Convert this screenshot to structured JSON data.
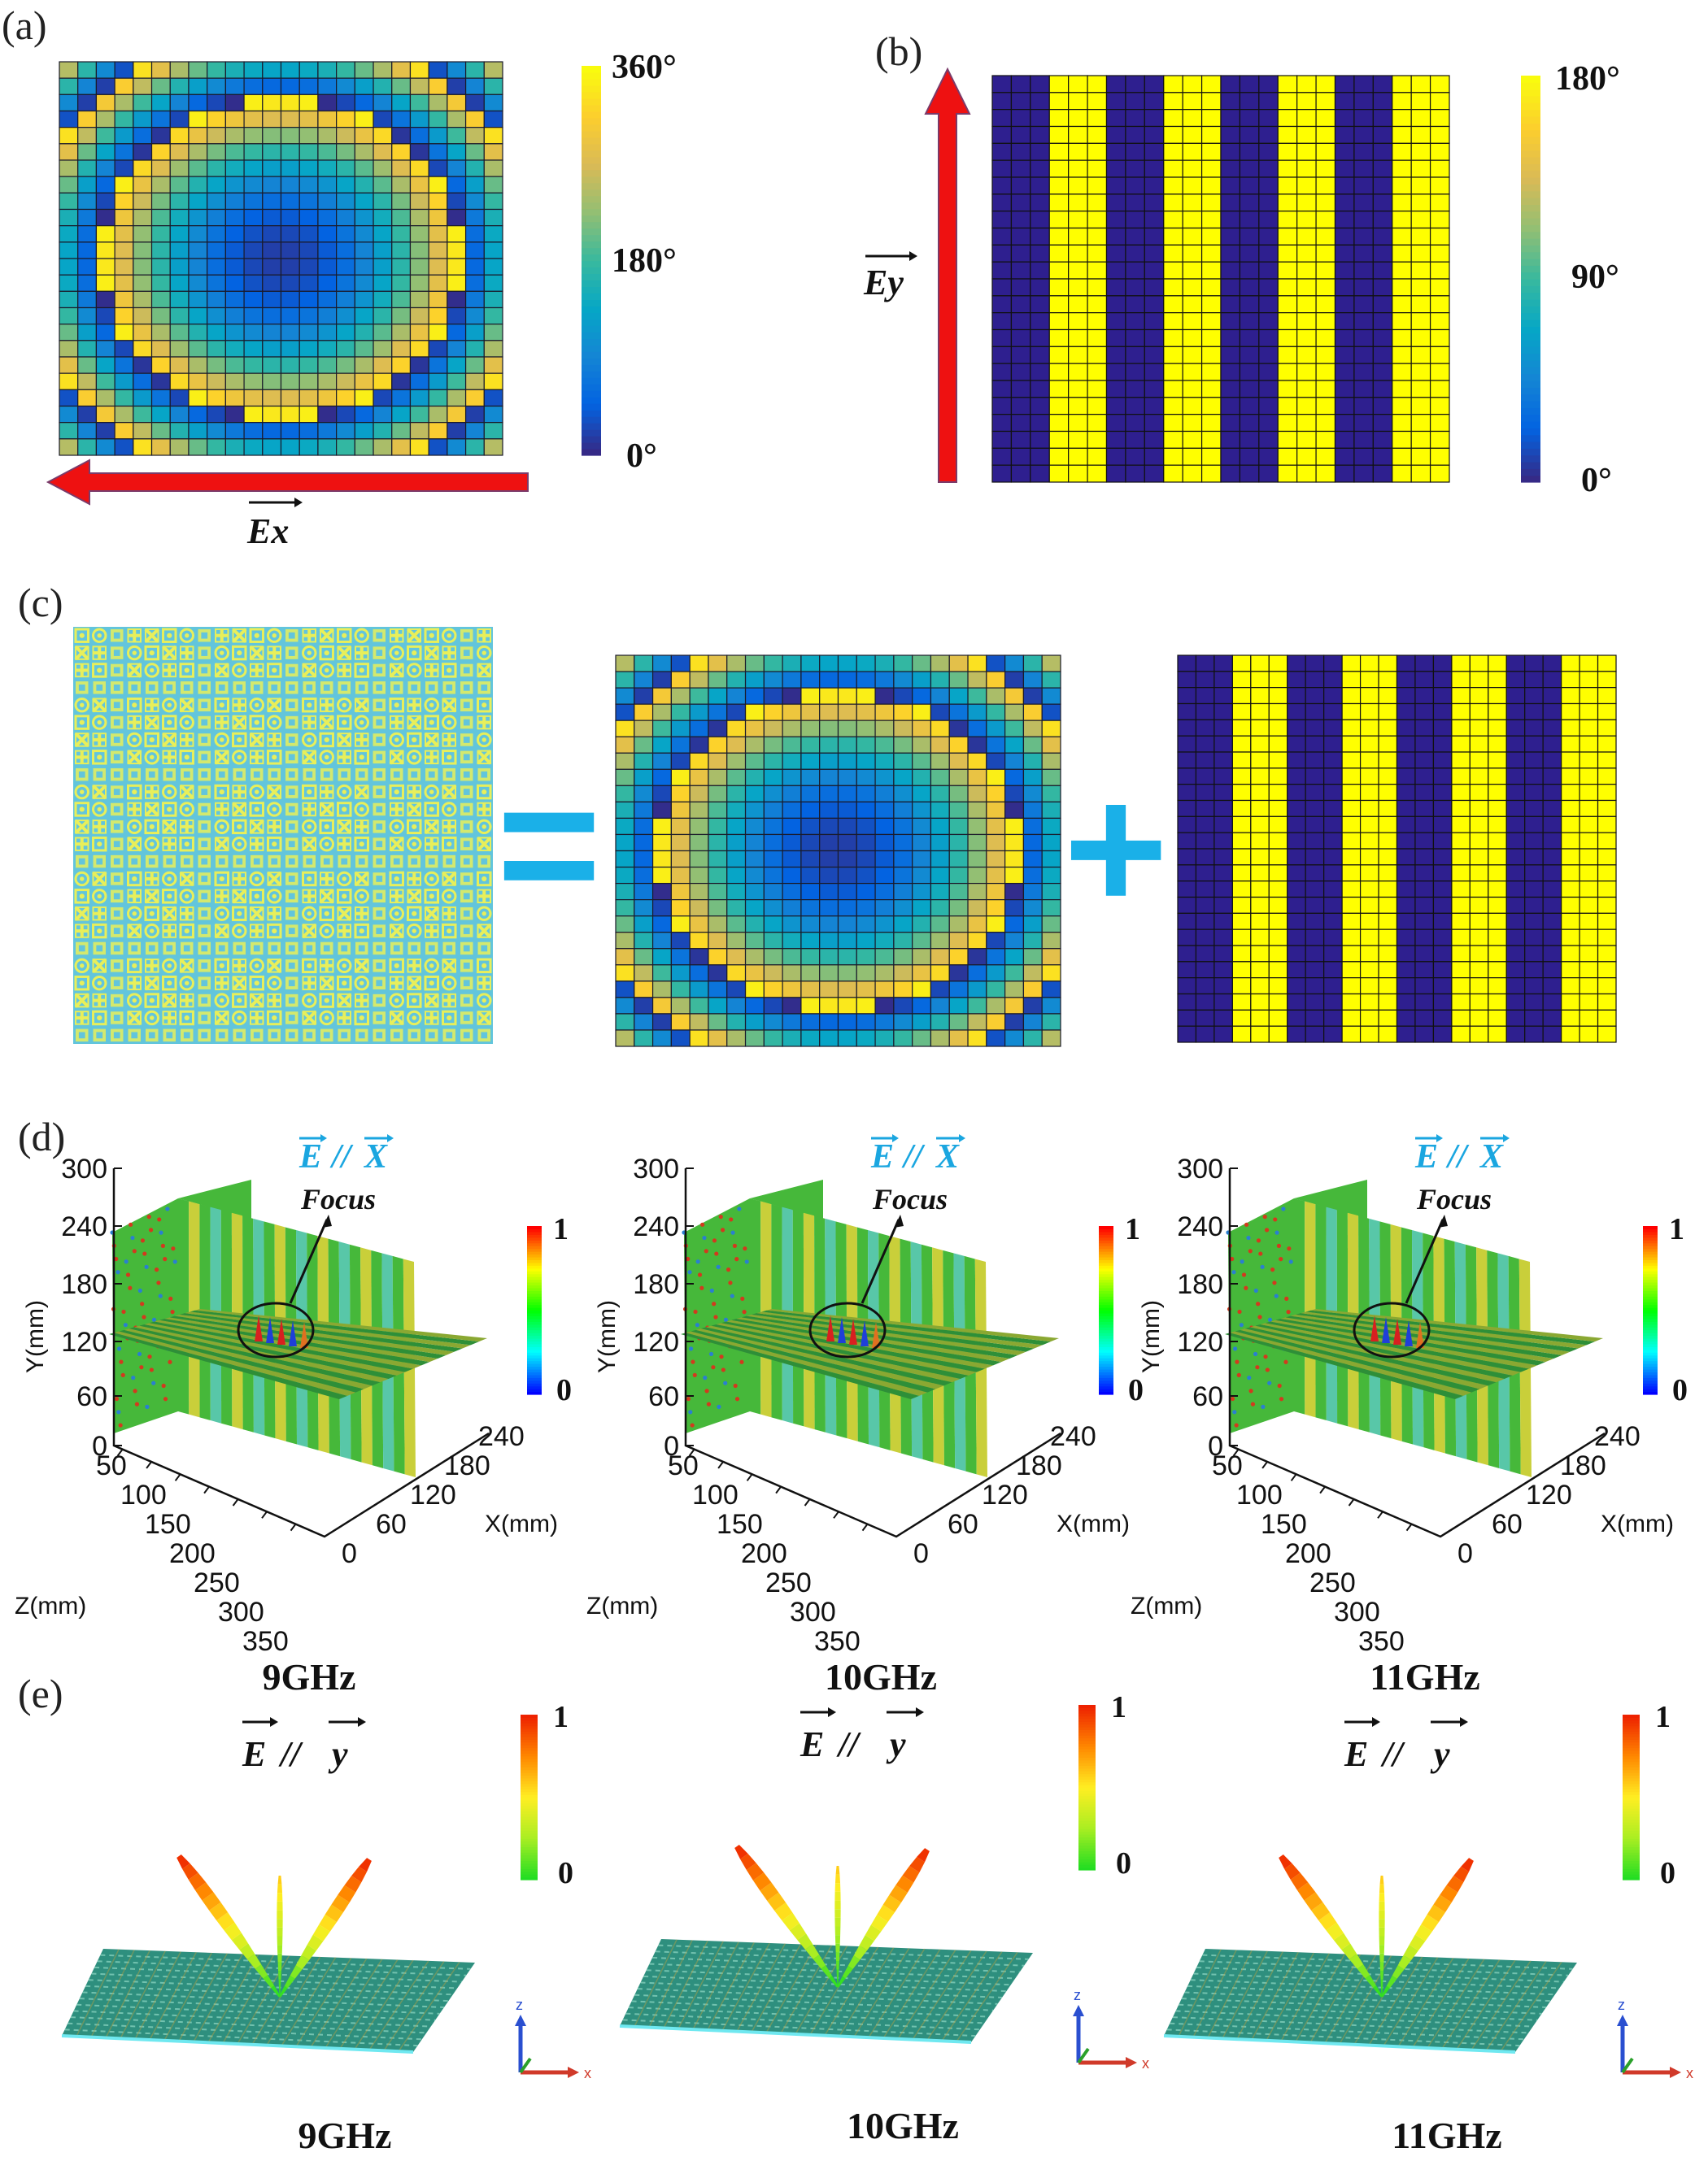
{
  "panel_labels": {
    "a": "(a)",
    "b": "(b)",
    "c": "(c)",
    "d": "(d)",
    "e": "(e)"
  },
  "panel_a": {
    "colorbar_ticks": [
      "360°",
      "180°",
      "0°"
    ],
    "field_label": "Ex",
    "arrow_direction": "left",
    "grid": {
      "columns": 24,
      "rows": 24
    }
  },
  "panel_b": {
    "colorbar_ticks": [
      "180°",
      "90°",
      "0°"
    ],
    "field_label": "Ey",
    "arrow_direction": "up",
    "grid": {
      "columns": 24,
      "rows": 24,
      "stripe_width_columns": 3,
      "stripe_phases": [
        "0°",
        "180°"
      ]
    }
  },
  "panel_c": {
    "equals_symbol": "=",
    "plus_symbol": "+"
  },
  "panel_d": {
    "title_parts": [
      "E",
      "//",
      "X"
    ],
    "annotation": "Focus",
    "y_axis": {
      "label": "Y(mm)",
      "ticks": [
        "300",
        "240",
        "180",
        "120",
        "60",
        "0"
      ]
    },
    "z_axis": {
      "label": "Z(mm)",
      "ticks": [
        "50",
        "100",
        "150",
        "200",
        "250",
        "300",
        "350"
      ]
    },
    "x_axis": {
      "label": "X(mm)",
      "ticks": [
        "0",
        "60",
        "120",
        "180",
        "240"
      ]
    },
    "colorbar_ticks": [
      "1",
      "0"
    ],
    "frequencies": [
      "9GHz",
      "10GHz",
      "11GHz"
    ]
  },
  "panel_e": {
    "title_parts": [
      "E",
      "//",
      "y"
    ],
    "colorbar_ticks": [
      "1",
      "0"
    ],
    "triad_labels": [
      "z",
      "x"
    ],
    "frequencies": [
      "9GHz",
      "10GHz",
      "11GHz"
    ]
  },
  "colors": {
    "parula": [
      "#352A87",
      "#0363E1",
      "#1485D4",
      "#06A7C6",
      "#38B99E",
      "#92BF73",
      "#D9BA56",
      "#FCCE2E",
      "#F9FB0E"
    ],
    "jet": [
      "#0000ff",
      "#00ffff",
      "#00ff00",
      "#ffff00",
      "#ff0000"
    ],
    "pattern_colorbar": [
      "#22dd22",
      "#aaee22",
      "#ffee22",
      "#ff8800",
      "#ee2200"
    ],
    "arrow": "#ee1111",
    "symbol_blue": "#1aa6e0",
    "stripe_blue": "#2e1f8f",
    "stripe_yellow": "#ffff00",
    "metasurface_bg": "#62c5dc",
    "metasurface_pattern": "#e8ef5a"
  }
}
